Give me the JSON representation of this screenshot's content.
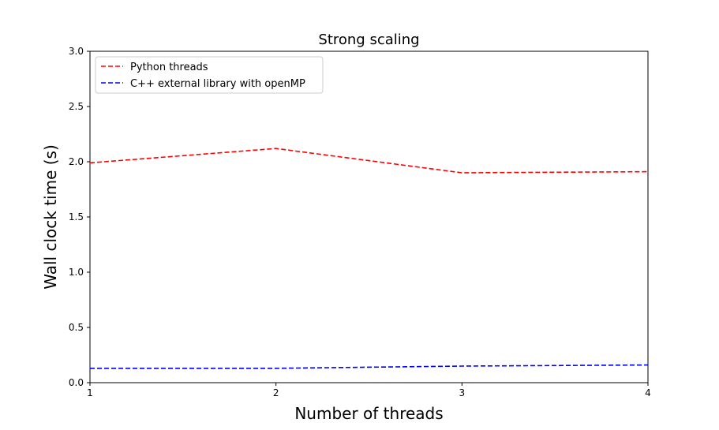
{
  "chart_data": {
    "type": "line",
    "title": "Strong scaling",
    "xlabel": "Number of threads",
    "ylabel": "Wall clock time (s)",
    "x": [
      1,
      2,
      3,
      4
    ],
    "x_ticks": [
      "1",
      "2",
      "3",
      "4"
    ],
    "xlim": [
      1,
      4
    ],
    "ylim": [
      0,
      3.0
    ],
    "y_ticks": [
      "0.0",
      "0.5",
      "1.0",
      "1.5",
      "2.0",
      "2.5",
      "3.0"
    ],
    "grid": false,
    "legend_position": "top-left",
    "series": [
      {
        "name": "Python threads",
        "values": [
          1.99,
          2.12,
          1.9,
          1.91
        ],
        "color": "#ff0000",
        "style": "dashed"
      },
      {
        "name": "C++ external library with openMP",
        "values": [
          0.13,
          0.13,
          0.15,
          0.16
        ],
        "color": "#0000ff",
        "style": "dashed"
      }
    ]
  }
}
